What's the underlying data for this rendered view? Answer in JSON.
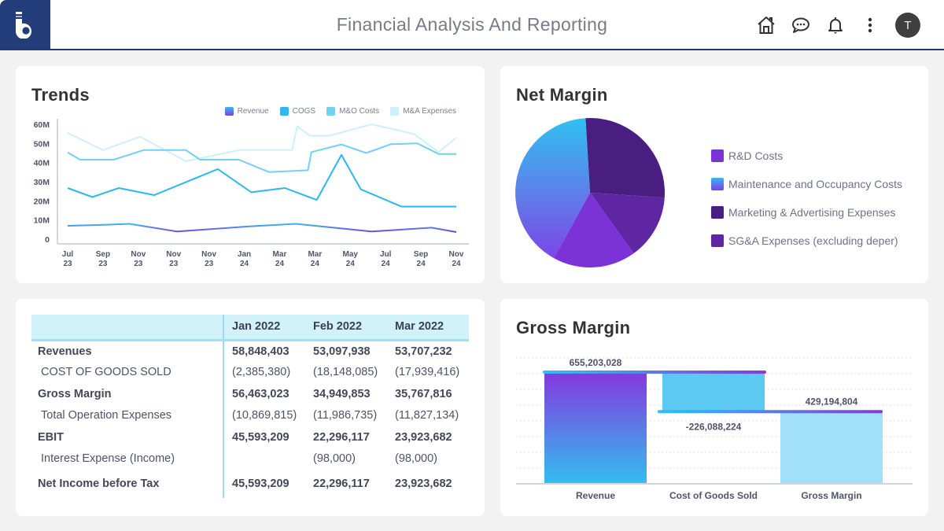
{
  "header": {
    "title": "Financial Analysis And Reporting",
    "logo": "b-logo",
    "icons": [
      "home-icon",
      "chat-icon",
      "bell-icon",
      "more-vertical-icon"
    ],
    "avatar_initial": "T"
  },
  "trends": {
    "title": "Trends",
    "legend": [
      {
        "label": "Revenue",
        "color": "#6d5be6"
      },
      {
        "label": "COGS",
        "color": "#2bb8ee"
      },
      {
        "label": "M&O Costs",
        "color": "#72d0f2"
      },
      {
        "label": "M&A Expenses",
        "color": "#cdf0fb"
      }
    ]
  },
  "net_margin": {
    "title": "Net Margin",
    "legend": [
      {
        "label": "R&D Costs",
        "color": "#7b32d6"
      },
      {
        "label": "Maintenance and Occupancy Costs",
        "color": "#38b9f0"
      },
      {
        "label": "Marketing & Advertising Expenses",
        "color": "#4a1e80"
      },
      {
        "label": "SG&A Expenses (excluding deper)",
        "color": "#5e26a3"
      }
    ]
  },
  "table": {
    "columns": [
      "",
      "Jan 2022",
      "Feb 2022",
      "Mar 2022"
    ],
    "rows": [
      {
        "label": "Revenues",
        "bold": true,
        "values": [
          "58,848,403",
          "53,097,938",
          "53,707,232"
        ]
      },
      {
        "label": "COST OF GOODS SOLD",
        "bold": false,
        "values": [
          "(2,385,380)",
          "(18,148,085)",
          "(17,939,416)"
        ]
      },
      {
        "label": "Gross Margin",
        "bold": true,
        "values": [
          "56,463,023",
          "34,949,853",
          "35,767,816"
        ]
      },
      {
        "label": "Total Operation Expenses",
        "bold": false,
        "values": [
          "(10,869,815)",
          "(11,986,735)",
          "(11,827,134)"
        ]
      },
      {
        "label": "EBIT",
        "bold": true,
        "values": [
          "45,593,209",
          "22,296,117",
          "23,923,682"
        ]
      },
      {
        "label": "Interest Expense (Income)",
        "bold": false,
        "values": [
          "",
          "(98,000)",
          "(98,000)"
        ]
      },
      {
        "label": "Net Income before Tax",
        "bold": true,
        "values": [
          "45,593,209",
          "22,296,117",
          "23,923,682"
        ]
      }
    ]
  },
  "gross_margin": {
    "title": "Gross Margin"
  },
  "chart_data": [
    {
      "type": "line",
      "title": "Trends",
      "xlabel": "",
      "ylabel": "",
      "ylim": [
        0,
        60
      ],
      "y_ticks": [
        "0",
        "10M",
        "20M",
        "30M",
        "40M",
        "50M",
        "60M"
      ],
      "x_ticks": [
        "Jul 23",
        "Sep 23",
        "Nov 23",
        "Nov 23",
        "Nov 23",
        "Jan 24",
        "Mar 24",
        "Mar 24",
        "May 24",
        "Jul 24",
        "Sep 24",
        "Nov 24"
      ],
      "x_range": [
        0,
        11
      ],
      "grid": false,
      "legend_position": "top-right",
      "series": [
        {
          "name": "M&A Expenses",
          "color": "#cdf0fb",
          "points": [
            [
              0,
              55.5
            ],
            [
              1,
              46.5
            ],
            [
              2.05,
              53.5
            ],
            [
              3.35,
              40.7
            ],
            [
              4.85,
              46.5
            ],
            [
              6.35,
              46.5
            ],
            [
              6.5,
              59
            ],
            [
              6.85,
              54
            ],
            [
              7.4,
              54
            ],
            [
              8.6,
              60
            ],
            [
              9.8,
              55
            ],
            [
              10.5,
              45.5
            ],
            [
              11,
              53
            ]
          ]
        },
        {
          "name": "M&O Costs",
          "color": "#72d0f2",
          "points": [
            [
              0,
              45.3
            ],
            [
              0.35,
              41.5
            ],
            [
              1.3,
              41.5
            ],
            [
              2.15,
              46.5
            ],
            [
              3.35,
              46.5
            ],
            [
              3.75,
              41.5
            ],
            [
              4.85,
              41.5
            ],
            [
              5.7,
              35
            ],
            [
              6.8,
              36
            ],
            [
              6.9,
              45.5
            ],
            [
              7.75,
              49.5
            ],
            [
              8.45,
              45
            ],
            [
              9.15,
              49.6
            ],
            [
              9.9,
              50
            ],
            [
              10.5,
              44.5
            ],
            [
              11,
              44.5
            ]
          ]
        },
        {
          "name": "COGS",
          "color": "#2bb8ee",
          "points": [
            [
              0,
              26.7
            ],
            [
              0.7,
              22
            ],
            [
              1.45,
              26.7
            ],
            [
              2.45,
              23
            ],
            [
              4.25,
              36.6
            ],
            [
              5.2,
              24.5
            ],
            [
              6.15,
              26.7
            ],
            [
              7.05,
              20.5
            ],
            [
              7.75,
              44
            ],
            [
              8.3,
              26
            ],
            [
              9.45,
              17
            ],
            [
              11,
              17
            ]
          ]
        },
        {
          "name": "Revenue",
          "color": "#6d5be6",
          "points": [
            [
              0,
              7
            ],
            [
              1.2,
              7.6
            ],
            [
              1.75,
              8
            ],
            [
              3.1,
              4
            ],
            [
              5.1,
              6.6
            ],
            [
              6.45,
              8
            ],
            [
              8.6,
              4
            ],
            [
              10.3,
              6
            ],
            [
              11,
              3.7
            ]
          ]
        }
      ]
    },
    {
      "type": "pie",
      "title": "Net Margin",
      "legend_position": "right",
      "slices": [
        {
          "label": "Marketing & Advertising Expenses",
          "value": 27,
          "color": "#4a1e80"
        },
        {
          "label": "SG&A Expenses (excluding deper)",
          "value": 14,
          "color": "#5e26a3"
        },
        {
          "label": "R&D Costs",
          "value": 18,
          "color": "#7b32d6"
        },
        {
          "label": "Maintenance and Occupancy Costs",
          "value": 41,
          "color": "#38b9f0"
        }
      ]
    },
    {
      "type": "bar",
      "subtype": "waterfall",
      "title": "Gross Margin",
      "categories": [
        "Revenue",
        "Cost of Goods Sold",
        "Gross Margin"
      ],
      "values": [
        655203028,
        -226088224,
        429194804
      ],
      "data_labels": [
        "655,203,028",
        "-226,088,224",
        "429,194,804"
      ],
      "colors": [
        "#7a3ee0",
        "#5bc9f1",
        "#a2e0f7"
      ],
      "ylim": [
        0,
        750000000
      ],
      "grid": true
    }
  ]
}
